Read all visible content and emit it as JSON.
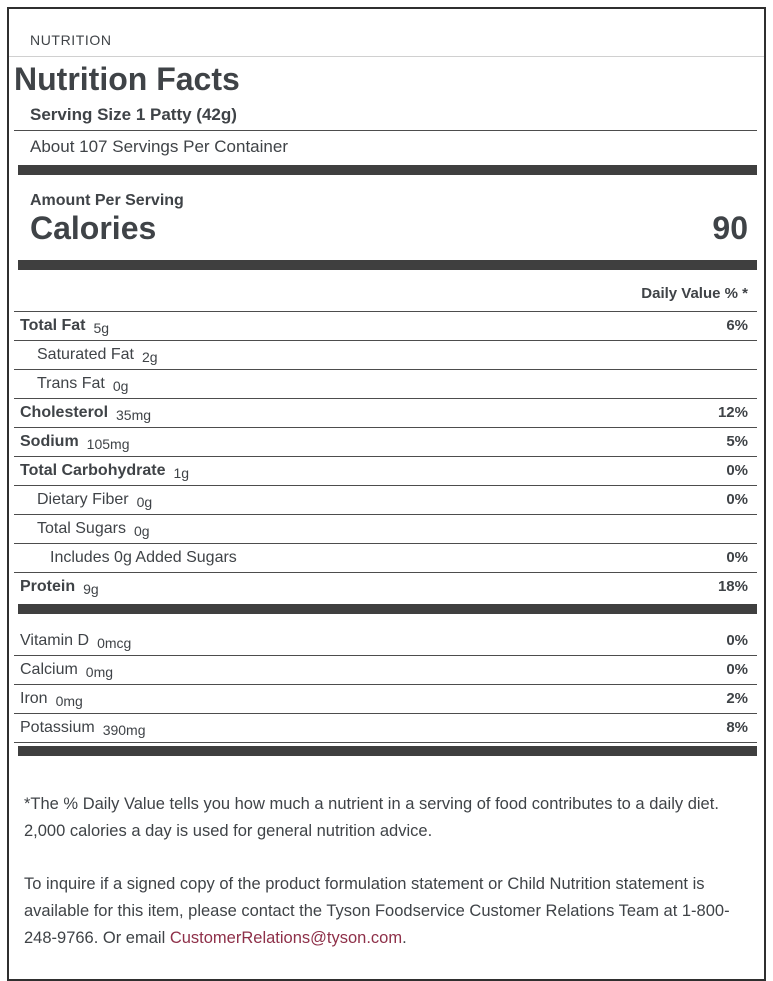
{
  "header": {
    "section_label": "NUTRITION",
    "title": "Nutrition Facts"
  },
  "serving": {
    "size": "Serving Size 1 Patty (42g)",
    "per_container": "About 107 Servings Per Container"
  },
  "calories": {
    "amount_per_serving_label": "Amount Per Serving",
    "name": "Calories",
    "value": "90"
  },
  "daily_value_header": "Daily Value % *",
  "nutrients": [
    {
      "label": "Total Fat",
      "amount": "5g",
      "dv": "6%",
      "bold": true,
      "indent": 0
    },
    {
      "label": "Saturated Fat",
      "amount": "2g",
      "dv": "",
      "bold": false,
      "indent": 1
    },
    {
      "label": "Trans Fat",
      "amount": "0g",
      "dv": "",
      "bold": false,
      "indent": 1
    },
    {
      "label": "Cholesterol",
      "amount": "35mg",
      "dv": "12%",
      "bold": true,
      "indent": 0
    },
    {
      "label": "Sodium",
      "amount": "105mg",
      "dv": "5%",
      "bold": true,
      "indent": 0
    },
    {
      "label": "Total Carbohydrate",
      "amount": "1g",
      "dv": "0%",
      "bold": true,
      "indent": 0
    },
    {
      "label": "Dietary Fiber",
      "amount": "0g",
      "dv": "0%",
      "bold": false,
      "indent": 1
    },
    {
      "label": "Total Sugars",
      "amount": "0g",
      "dv": "",
      "bold": false,
      "indent": 1
    },
    {
      "label": "Includes 0g Added Sugars",
      "amount": "",
      "dv": "0%",
      "bold": false,
      "indent": 2
    },
    {
      "label": "Protein",
      "amount": "9g",
      "dv": "18%",
      "bold": true,
      "indent": 0
    }
  ],
  "vitamins": [
    {
      "label": "Vitamin D",
      "amount": "0mcg",
      "dv": "0%",
      "bold": false,
      "indent": 0
    },
    {
      "label": "Calcium",
      "amount": "0mg",
      "dv": "0%",
      "bold": false,
      "indent": 0
    },
    {
      "label": "Iron",
      "amount": "0mg",
      "dv": "2%",
      "bold": false,
      "indent": 0
    },
    {
      "label": "Potassium",
      "amount": "390mg",
      "dv": "8%",
      "bold": false,
      "indent": 0
    }
  ],
  "footnote": "*The % Daily Value tells you how much a nutrient in a serving of food contributes to a daily diet. 2,000 calories a day is used for general nutrition advice.",
  "contact": {
    "text_before_email": "To inquire if a signed copy of the product formulation statement or Child Nutrition statement is available for this item, please contact the Tyson Foodservice Customer Relations Team at 1-800-248-9766. Or email ",
    "email": "CustomerRelations@tyson.com",
    "text_after_email": "."
  },
  "colors": {
    "text": "#3f4347",
    "thick_bar": "#3f3f3f",
    "divider": "#4d4d4d",
    "light_divider": "#d0d0d0",
    "outer_border": "#2f2f2f",
    "link": "#8e3049"
  }
}
